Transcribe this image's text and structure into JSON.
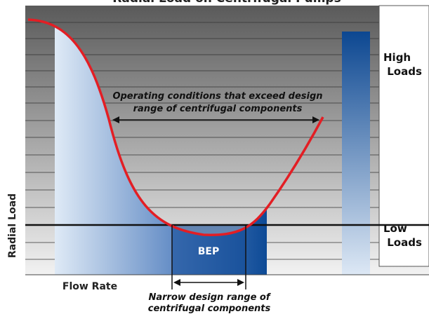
{
  "title": "Radial Load on Centrifugal Pumps",
  "y_axis_label": "Radial Load",
  "x_axis_label": "Flow Rate",
  "bep_label": "BEP",
  "high_label": "High Loads",
  "low_label": "Low Loads",
  "annotation_top": {
    "line1": "Operating conditions that exceed design",
    "line2": "range of centrifugal components"
  },
  "annotation_bottom": {
    "line1": "Narrow design range of",
    "line2": "centrifugal components"
  }
}
